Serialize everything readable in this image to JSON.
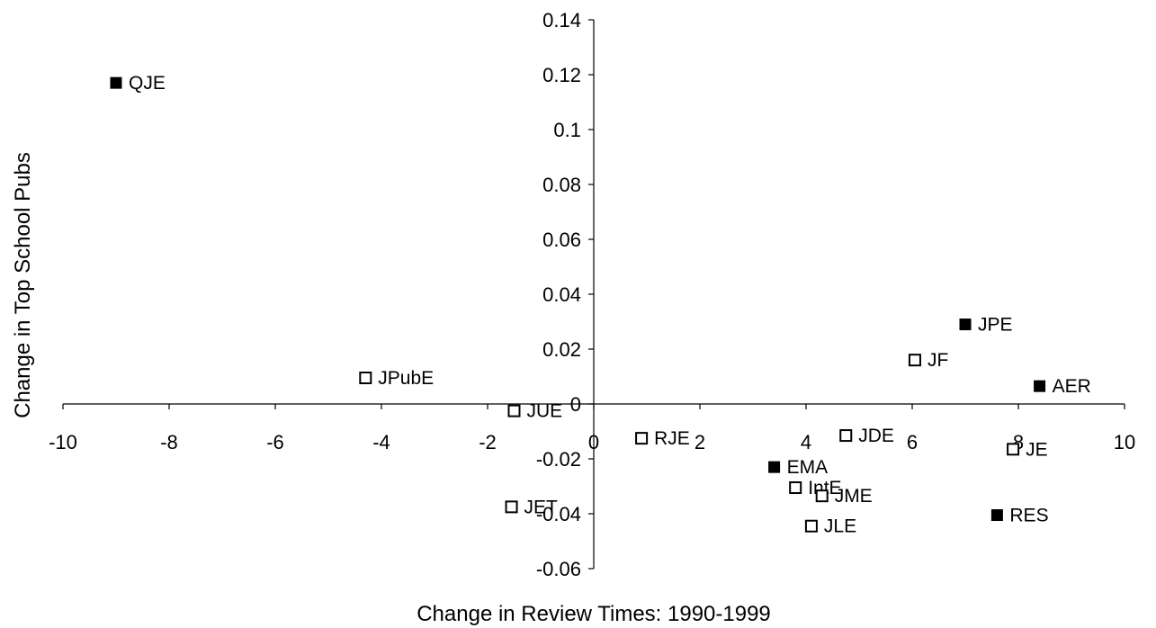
{
  "chart_data": {
    "type": "scatter",
    "title": "",
    "xlabel": "Change in Review Times: 1990-1999",
    "ylabel": "Change in Top School Pubs",
    "xlim": [
      -10,
      10
    ],
    "ylim": [
      -0.06,
      0.14
    ],
    "xticks": [
      -10,
      -8,
      -6,
      -4,
      -2,
      0,
      2,
      4,
      6,
      8,
      10
    ],
    "yticks": [
      -0.06,
      -0.04,
      -0.02,
      0,
      0.02,
      0.04,
      0.06,
      0.08,
      0.1,
      0.12,
      0.14
    ],
    "xtick_labels": [
      "-10",
      "-8",
      "-6",
      "-4",
      "-2",
      "0",
      "2",
      "4",
      "6",
      "8",
      "10"
    ],
    "ytick_labels": [
      "-0.06",
      "-0.04",
      "-0.02",
      "0",
      "0.02",
      "0.04",
      "0.06",
      "0.08",
      "0.1",
      "0.12",
      "0.14"
    ],
    "grid": false,
    "series": [
      {
        "marker": "filled-square",
        "color": "#000000",
        "points": [
          {
            "label": "QJE",
            "x": -9.0,
            "y": 0.117
          },
          {
            "label": "JPE",
            "x": 7.0,
            "y": 0.029
          },
          {
            "label": "AER",
            "x": 8.4,
            "y": 0.0065
          },
          {
            "label": "EMA",
            "x": 3.4,
            "y": -0.023
          },
          {
            "label": "RES",
            "x": 7.6,
            "y": -0.0405
          }
        ]
      },
      {
        "marker": "open-square",
        "color": "#000000",
        "points": [
          {
            "label": "JPubE",
            "x": -4.3,
            "y": 0.0095
          },
          {
            "label": "JUE",
            "x": -1.5,
            "y": -0.0025
          },
          {
            "label": "JF",
            "x": 6.05,
            "y": 0.016
          },
          {
            "label": "RJE",
            "x": 0.9,
            "y": -0.0125
          },
          {
            "label": "JDE",
            "x": 4.75,
            "y": -0.0115
          },
          {
            "label": "JE",
            "x": 7.9,
            "y": -0.0165
          },
          {
            "label": "IntE",
            "x": 3.8,
            "y": -0.0305
          },
          {
            "label": "JME",
            "x": 4.3,
            "y": -0.0335
          },
          {
            "label": "JET",
            "x": -1.55,
            "y": -0.0375
          },
          {
            "label": "JLE",
            "x": 4.1,
            "y": -0.0445
          }
        ]
      }
    ]
  }
}
